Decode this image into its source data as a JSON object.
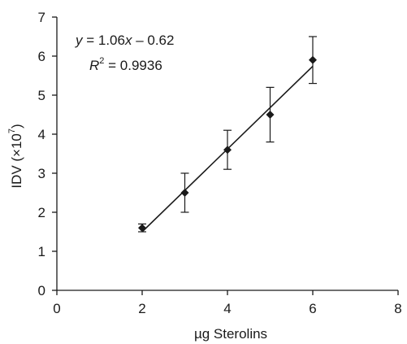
{
  "chart_data": {
    "type": "scatter",
    "x": [
      2,
      3,
      4,
      5,
      6
    ],
    "y": [
      1.6,
      2.5,
      3.6,
      4.5,
      5.9
    ],
    "error": [
      0.1,
      0.5,
      0.5,
      0.7,
      0.6
    ],
    "trendline": {
      "slope": 1.06,
      "intercept": -0.62,
      "x_start": 2,
      "x_end": 6
    },
    "equation": {
      "y": "y",
      "eq1": " = 1.06",
      "x": "x",
      "eq2": " – 0.62"
    },
    "r_squared": {
      "R": "R",
      "sup": "2",
      "rest": " = 0.9936"
    },
    "xlabel": "µg Sterolins",
    "ylabel": {
      "main": "IDV (×10",
      "sup": "7",
      "close": ")"
    },
    "xlim": [
      0,
      8
    ],
    "ylim": [
      0,
      7
    ],
    "xticks": [
      "0",
      "2",
      "4",
      "6",
      "8"
    ],
    "yticks": [
      "0",
      "1",
      "2",
      "3",
      "4",
      "5",
      "6",
      "7"
    ],
    "grid": false,
    "colors": {
      "marker": "#1a1a1a",
      "line": "#1a1a1a",
      "axis": "#1a1a1a"
    }
  }
}
